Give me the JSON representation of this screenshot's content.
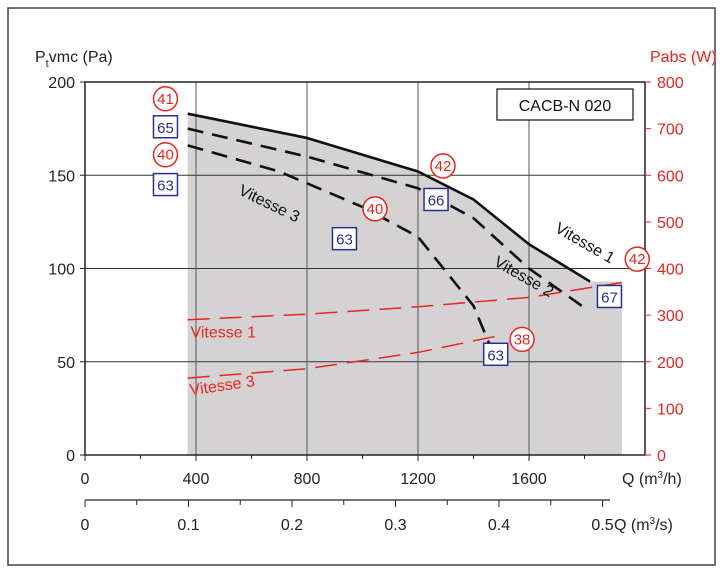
{
  "chart_data": {
    "type": "line",
    "model_label": "CACB-N 020",
    "left_axis": {
      "label_main": "P",
      "label_sub": "t",
      "label_rest": "vmc (Pa)",
      "ylim": [
        0,
        200
      ],
      "ticks": [
        "0",
        "50",
        "100",
        "150",
        "200"
      ]
    },
    "right_axis": {
      "label": "Pabs (W)",
      "ylim": [
        0,
        800
      ],
      "ticks": [
        "0",
        "100",
        "200",
        "300",
        "400",
        "500",
        "600",
        "700",
        "800"
      ],
      "color": "#e8261e"
    },
    "x_axis_flow_m3h": {
      "label_main": "Q (m",
      "label_sup": "3",
      "label_rest": "/h)",
      "xlim": [
        0,
        2000
      ],
      "ticks": [
        "0",
        "400",
        "800",
        "1200",
        "1600"
      ],
      "tick_values": [
        0,
        400,
        800,
        1200,
        1600
      ]
    },
    "x_axis_flow_m3s": {
      "label_main": "Q (m",
      "label_sup": "3",
      "label_rest": "/s)",
      "ticks": [
        "0",
        "0.1",
        "0.2",
        "0.3",
        "0.4",
        "0.5"
      ],
      "tick_values": [
        0,
        0.1,
        0.2,
        0.3,
        0.4,
        0.5
      ]
    },
    "operating_area": {
      "color": "#d4d2d2",
      "x_range": [
        370,
        1935
      ]
    },
    "pressure_series": [
      {
        "name": "Vitesse 1",
        "style": "solid",
        "x": [
          370,
          800,
          1200,
          1400,
          1600,
          1820
        ],
        "y": [
          183,
          170,
          152,
          137,
          113,
          93
        ]
      },
      {
        "name": "Vitesse 2",
        "style": "dashed",
        "x": [
          370,
          800,
          1200,
          1400,
          1600,
          1790
        ],
        "y": [
          175,
          160,
          143,
          127,
          100,
          80
        ]
      },
      {
        "name": "Vitesse 3",
        "style": "dashed",
        "x": [
          370,
          700,
          1000,
          1200,
          1400,
          1470
        ],
        "y": [
          166,
          152,
          133,
          117,
          80,
          55
        ]
      }
    ],
    "power_series": [
      {
        "name": "Vitesse 1",
        "style": "dashed",
        "x": [
          370,
          800,
          1200,
          1600,
          1935
        ],
        "y": [
          290,
          302,
          318,
          338,
          370
        ]
      },
      {
        "name": "Vitesse 3",
        "style": "dashed",
        "x": [
          370,
          800,
          1200,
          1500
        ],
        "y": [
          165,
          185,
          220,
          257
        ]
      }
    ],
    "annotations": [
      {
        "text": "41",
        "shape": "circle",
        "x": 290,
        "y": 191
      },
      {
        "text": "65",
        "shape": "square",
        "x": 290,
        "y": 176
      },
      {
        "text": "40",
        "shape": "circle",
        "x": 290,
        "y": 161
      },
      {
        "text": "63",
        "shape": "square",
        "x": 290,
        "y": 145
      },
      {
        "text": "42",
        "shape": "circle",
        "x": 1290,
        "y": 155
      },
      {
        "text": "66",
        "shape": "square",
        "x": 1265,
        "y": 137
      },
      {
        "text": "40",
        "shape": "circle",
        "x": 1045,
        "y": 132
      },
      {
        "text": "63",
        "shape": "square",
        "x": 935,
        "y": 116
      },
      {
        "text": "42",
        "shape": "circle",
        "x": 1990,
        "y": 105
      },
      {
        "text": "67",
        "shape": "square",
        "x": 1890,
        "y": 85
      },
      {
        "text": "38",
        "shape": "circle",
        "x": 1575,
        "y": 62
      },
      {
        "text": "63",
        "shape": "square",
        "x": 1480,
        "y": 54
      }
    ],
    "series_text_labels": [
      {
        "text": "Vitesse 1",
        "x": 1690,
        "y": 120,
        "rotate": 30,
        "color": "#111111"
      },
      {
        "text": "Vitesse 2",
        "x": 1470,
        "y": 102,
        "rotate": 30,
        "color": "#111111"
      },
      {
        "text": "Vitesse 3",
        "x": 550,
        "y": 140,
        "rotate": 26,
        "color": "#111111"
      },
      {
        "text": "Vitesse 1",
        "x": 380,
        "y": 63,
        "rotate": 0,
        "color": "#e8261e"
      },
      {
        "text": "Vitesse 3",
        "x": 380,
        "y": 32,
        "rotate": -8,
        "color": "#e8261e"
      }
    ]
  }
}
